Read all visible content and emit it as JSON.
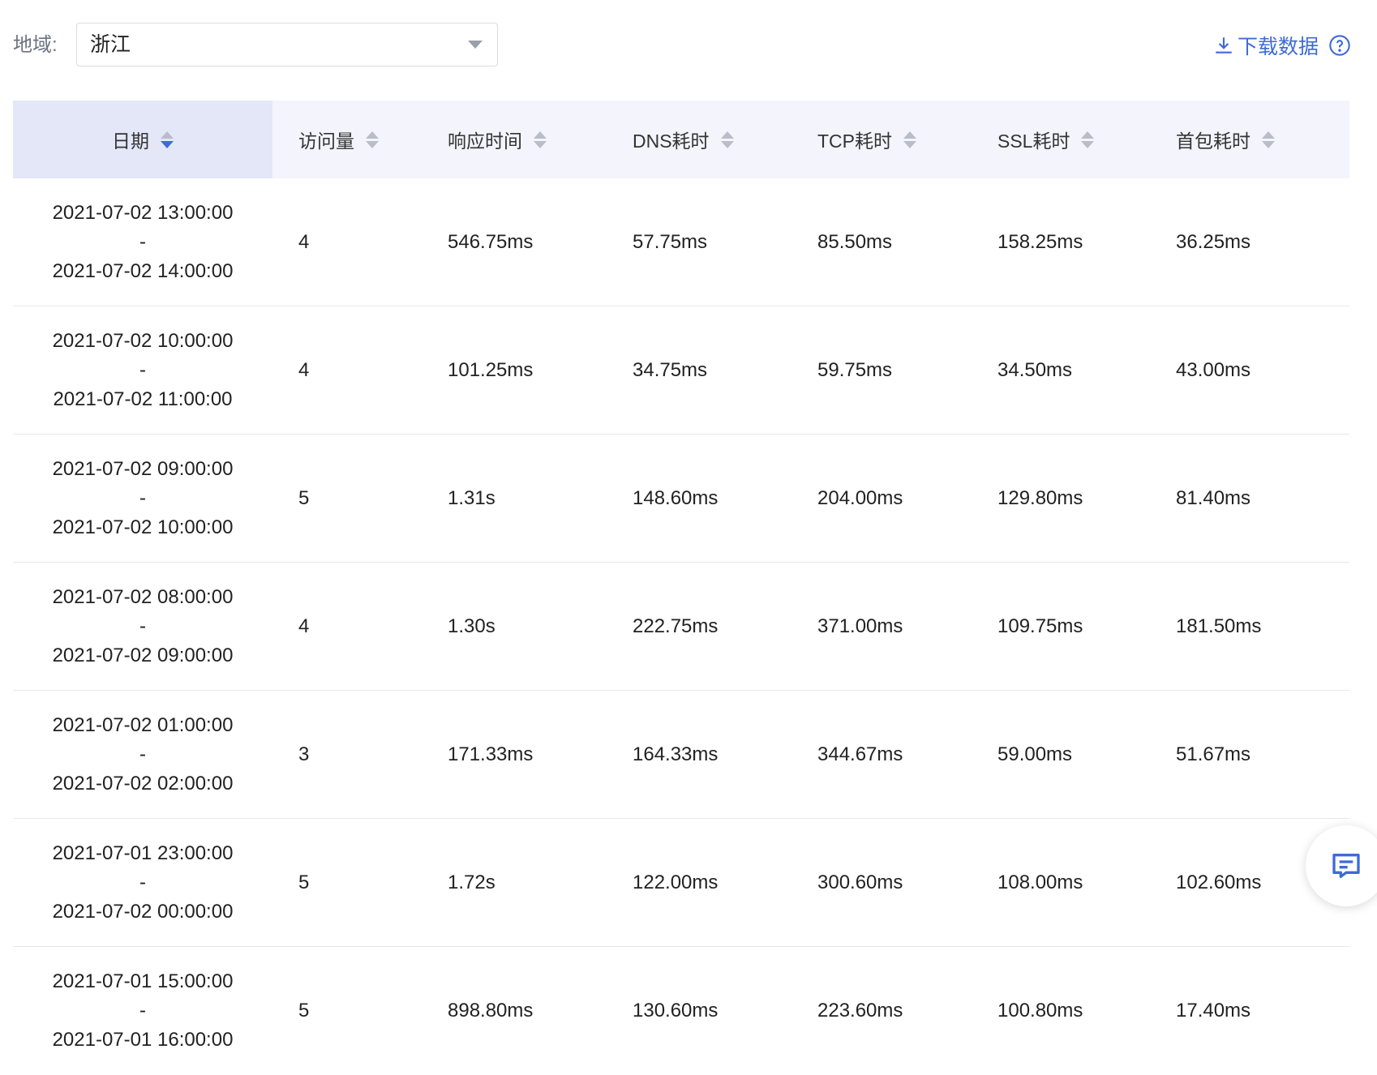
{
  "filter": {
    "label": "地域:",
    "selected": "浙江"
  },
  "download": {
    "label": "下载数据"
  },
  "table": {
    "columns": [
      {
        "label": "日期"
      },
      {
        "label": "访问量"
      },
      {
        "label": "响应时间"
      },
      {
        "label": "DNS耗时"
      },
      {
        "label": "TCP耗时"
      },
      {
        "label": "SSL耗时"
      },
      {
        "label": "首包耗时"
      }
    ],
    "rows": [
      {
        "date_start": "2021-07-02 13:00:00",
        "sep": "-",
        "date_end": "2021-07-02 14:00:00",
        "visits": "4",
        "response": "546.75ms",
        "dns": "57.75ms",
        "tcp": "85.50ms",
        "ssl": "158.25ms",
        "first_packet": "36.25ms"
      },
      {
        "date_start": "2021-07-02 10:00:00",
        "sep": "-",
        "date_end": "2021-07-02 11:00:00",
        "visits": "4",
        "response": "101.25ms",
        "dns": "34.75ms",
        "tcp": "59.75ms",
        "ssl": "34.50ms",
        "first_packet": "43.00ms"
      },
      {
        "date_start": "2021-07-02 09:00:00",
        "sep": "-",
        "date_end": "2021-07-02 10:00:00",
        "visits": "5",
        "response": "1.31s",
        "dns": "148.60ms",
        "tcp": "204.00ms",
        "ssl": "129.80ms",
        "first_packet": "81.40ms"
      },
      {
        "date_start": "2021-07-02 08:00:00",
        "sep": "-",
        "date_end": "2021-07-02 09:00:00",
        "visits": "4",
        "response": "1.30s",
        "dns": "222.75ms",
        "tcp": "371.00ms",
        "ssl": "109.75ms",
        "first_packet": "181.50ms"
      },
      {
        "date_start": "2021-07-02 01:00:00",
        "sep": "-",
        "date_end": "2021-07-02 02:00:00",
        "visits": "3",
        "response": "171.33ms",
        "dns": "164.33ms",
        "tcp": "344.67ms",
        "ssl": "59.00ms",
        "first_packet": "51.67ms"
      },
      {
        "date_start": "2021-07-01 23:00:00",
        "sep": "-",
        "date_end": "2021-07-02 00:00:00",
        "visits": "5",
        "response": "1.72s",
        "dns": "122.00ms",
        "tcp": "300.60ms",
        "ssl": "108.00ms",
        "first_packet": "102.60ms"
      },
      {
        "date_start": "2021-07-01 15:00:00",
        "sep": "-",
        "date_end": "2021-07-01 16:00:00",
        "visits": "5",
        "response": "898.80ms",
        "dns": "130.60ms",
        "tcp": "223.60ms",
        "ssl": "100.80ms",
        "first_packet": "17.40ms"
      }
    ]
  },
  "icons": {
    "select_caret": "chevron-down-icon",
    "download": "download-icon",
    "help": "help-circle-icon",
    "sort": "sort-icon",
    "feedback": "chat-feedback-icon"
  },
  "colors": {
    "accent": "#3f6ad8",
    "header_bg": "#f3f4fc",
    "sorted_header_bg": "#e4e7f8",
    "border": "#e6e8ee"
  }
}
